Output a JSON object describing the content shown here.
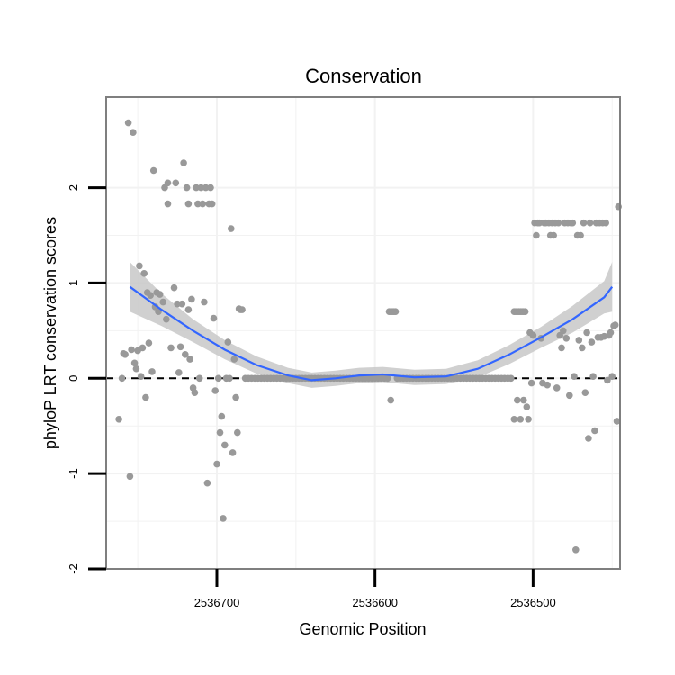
{
  "chart_data": {
    "type": "scatter",
    "title": "Conservation",
    "xlabel": "Genomic Position",
    "ylabel": "phyloP LRT conservation scores",
    "x_reversed": true,
    "xlim": [
      2536445,
      2536770
    ],
    "ylim": [
      -2,
      2.95
    ],
    "x_ticks": [
      2536700,
      2536600,
      2536500
    ],
    "x_tick_labels": [
      "2536700",
      "2536600",
      "2536500"
    ],
    "y_ticks": [
      -2,
      -1,
      0,
      1,
      2
    ],
    "y_tick_labels": [
      "-2",
      "-1",
      "0",
      "1",
      "2"
    ],
    "reference_line": {
      "y": 0,
      "style": "dashed"
    },
    "colors": {
      "points": "#999999",
      "smooth": "#3366FF",
      "ribbon": "#C8C8C8",
      "panel_border": "#7F7F7F",
      "grid": "#F2F2F2",
      "refline": "#000000"
    },
    "points": [
      [
        2536762,
        -0.43
      ],
      [
        2536760,
        0.0
      ],
      [
        2536759,
        0.26
      ],
      [
        2536758,
        0.25
      ],
      [
        2536756,
        2.68
      ],
      [
        2536755,
        -1.03
      ],
      [
        2536754,
        0.3
      ],
      [
        2536753,
        2.58
      ],
      [
        2536752,
        0.16
      ],
      [
        2536751,
        0.1
      ],
      [
        2536750,
        0.29
      ],
      [
        2536749,
        1.18
      ],
      [
        2536748,
        0.02
      ],
      [
        2536747,
        0.32
      ],
      [
        2536746,
        1.1
      ],
      [
        2536745,
        -0.2
      ],
      [
        2536744,
        0.9
      ],
      [
        2536743,
        0.37
      ],
      [
        2536742,
        0.87
      ],
      [
        2536741,
        0.07
      ],
      [
        2536740,
        2.18
      ],
      [
        2536739,
        0.75
      ],
      [
        2536738,
        0.9
      ],
      [
        2536737,
        0.7
      ],
      [
        2536736,
        0.88
      ],
      [
        2536734,
        0.8
      ],
      [
        2536733,
        2.0
      ],
      [
        2536732,
        0.62
      ],
      [
        2536731,
        1.83
      ],
      [
        2536731,
        2.05
      ],
      [
        2536729,
        0.32
      ],
      [
        2536727,
        0.95
      ],
      [
        2536726,
        2.05
      ],
      [
        2536725,
        0.78
      ],
      [
        2536724,
        0.06
      ],
      [
        2536723,
        0.33
      ],
      [
        2536722,
        0.78
      ],
      [
        2536721,
        2.26
      ],
      [
        2536720,
        0.25
      ],
      [
        2536719,
        2.0
      ],
      [
        2536718,
        0.72
      ],
      [
        2536718,
        1.83
      ],
      [
        2536717,
        0.2
      ],
      [
        2536716,
        0.83
      ],
      [
        2536715,
        -0.1
      ],
      [
        2536714,
        -0.15
      ],
      [
        2536713,
        2.0
      ],
      [
        2536712,
        1.83
      ],
      [
        2536711,
        0.0
      ],
      [
        2536710,
        2.0
      ],
      [
        2536709,
        1.83
      ],
      [
        2536708,
        0.8
      ],
      [
        2536707,
        2.0
      ],
      [
        2536706,
        -1.1
      ],
      [
        2536705,
        1.83
      ],
      [
        2536704,
        2.0
      ],
      [
        2536703,
        1.83
      ],
      [
        2536702,
        0.63
      ],
      [
        2536701,
        -0.13
      ],
      [
        2536700,
        -0.9
      ],
      [
        2536699,
        0.0
      ],
      [
        2536698,
        -0.57
      ],
      [
        2536697,
        -0.4
      ],
      [
        2536696,
        -1.47
      ],
      [
        2536695,
        -0.7
      ],
      [
        2536694,
        0.0
      ],
      [
        2536693,
        0.38
      ],
      [
        2536692,
        0.0
      ],
      [
        2536691,
        1.57
      ],
      [
        2536690,
        -0.78
      ],
      [
        2536689,
        0.2
      ],
      [
        2536688,
        -0.2
      ],
      [
        2536687,
        -0.57
      ],
      [
        2536686,
        0.73
      ],
      [
        2536685,
        0.72
      ],
      [
        2536684,
        0.72
      ],
      [
        2536682,
        0.0
      ],
      [
        2536680,
        0.0
      ],
      [
        2536678,
        0.0
      ],
      [
        2536676,
        0.0
      ],
      [
        2536674,
        0.0
      ],
      [
        2536672,
        0.0
      ],
      [
        2536670,
        0.0
      ],
      [
        2536668,
        0.0
      ],
      [
        2536666,
        0.0
      ],
      [
        2536664,
        0.0
      ],
      [
        2536662,
        0.0
      ],
      [
        2536660,
        0.0
      ],
      [
        2536658,
        0.0
      ],
      [
        2536656,
        0.0
      ],
      [
        2536654,
        0.0
      ],
      [
        2536652,
        0.0
      ],
      [
        2536650,
        0.0
      ],
      [
        2536648,
        0.0
      ],
      [
        2536646,
        0.0
      ],
      [
        2536644,
        0.0
      ],
      [
        2536642,
        0.0
      ],
      [
        2536640,
        0.0
      ],
      [
        2536638,
        0.0
      ],
      [
        2536636,
        0.0
      ],
      [
        2536634,
        0.0
      ],
      [
        2536632,
        0.0
      ],
      [
        2536630,
        0.0
      ],
      [
        2536628,
        0.0
      ],
      [
        2536626,
        0.0
      ],
      [
        2536624,
        0.0
      ],
      [
        2536622,
        0.0
      ],
      [
        2536620,
        0.0
      ],
      [
        2536618,
        0.0
      ],
      [
        2536616,
        0.0
      ],
      [
        2536614,
        0.0
      ],
      [
        2536612,
        0.0
      ],
      [
        2536610,
        0.0
      ],
      [
        2536608,
        0.0
      ],
      [
        2536606,
        0.0
      ],
      [
        2536604,
        0.0
      ],
      [
        2536602,
        0.0
      ],
      [
        2536600,
        0.0
      ],
      [
        2536598,
        0.0
      ],
      [
        2536596,
        0.0
      ],
      [
        2536594,
        0.0
      ],
      [
        2536592,
        0.0
      ],
      [
        2536591,
        0.7
      ],
      [
        2536590,
        0.7
      ],
      [
        2536589,
        0.7
      ],
      [
        2536588,
        0.7
      ],
      [
        2536587,
        0.7
      ],
      [
        2536590,
        -0.23
      ],
      [
        2536586,
        0.0
      ],
      [
        2536584,
        0.0
      ],
      [
        2536582,
        0.0
      ],
      [
        2536580,
        0.0
      ],
      [
        2536578,
        0.0
      ],
      [
        2536576,
        0.0
      ],
      [
        2536574,
        0.0
      ],
      [
        2536572,
        0.0
      ],
      [
        2536570,
        0.0
      ],
      [
        2536568,
        0.0
      ],
      [
        2536566,
        0.0
      ],
      [
        2536564,
        0.0
      ],
      [
        2536562,
        0.0
      ],
      [
        2536560,
        0.0
      ],
      [
        2536558,
        0.0
      ],
      [
        2536556,
        0.0
      ],
      [
        2536554,
        0.0
      ],
      [
        2536552,
        0.0
      ],
      [
        2536550,
        0.0
      ],
      [
        2536548,
        0.0
      ],
      [
        2536546,
        0.0
      ],
      [
        2536544,
        0.0
      ],
      [
        2536542,
        0.0
      ],
      [
        2536540,
        0.0
      ],
      [
        2536538,
        0.0
      ],
      [
        2536536,
        0.0
      ],
      [
        2536534,
        0.0
      ],
      [
        2536532,
        0.0
      ],
      [
        2536530,
        0.0
      ],
      [
        2536528,
        0.0
      ],
      [
        2536526,
        0.0
      ],
      [
        2536524,
        0.0
      ],
      [
        2536522,
        0.0
      ],
      [
        2536520,
        0.0
      ],
      [
        2536518,
        0.0
      ],
      [
        2536516,
        0.0
      ],
      [
        2536514,
        0.0
      ],
      [
        2536512,
        0.7
      ],
      [
        2536511,
        0.7
      ],
      [
        2536510,
        0.7
      ],
      [
        2536509,
        0.7
      ],
      [
        2536508,
        0.7
      ],
      [
        2536507,
        0.7
      ],
      [
        2536506,
        0.7
      ],
      [
        2536505,
        0.7
      ],
      [
        2536512,
        -0.43
      ],
      [
        2536510,
        -0.23
      ],
      [
        2536508,
        -0.43
      ],
      [
        2536506,
        -0.23
      ],
      [
        2536504,
        -0.3
      ],
      [
        2536503,
        -0.43
      ],
      [
        2536502,
        0.48
      ],
      [
        2536501,
        -0.05
      ],
      [
        2536500,
        0.45
      ],
      [
        2536499,
        1.63
      ],
      [
        2536498,
        1.5
      ],
      [
        2536497,
        1.63
      ],
      [
        2536496,
        1.63
      ],
      [
        2536495,
        0.42
      ],
      [
        2536494,
        -0.05
      ],
      [
        2536493,
        1.63
      ],
      [
        2536492,
        1.63
      ],
      [
        2536491,
        -0.07
      ],
      [
        2536490,
        1.63
      ],
      [
        2536489,
        1.5
      ],
      [
        2536488,
        1.63
      ],
      [
        2536487,
        1.5
      ],
      [
        2536486,
        1.63
      ],
      [
        2536485,
        -0.1
      ],
      [
        2536484,
        1.63
      ],
      [
        2536483,
        0.45
      ],
      [
        2536482,
        0.32
      ],
      [
        2536481,
        0.5
      ],
      [
        2536480,
        1.63
      ],
      [
        2536479,
        0.42
      ],
      [
        2536478,
        1.63
      ],
      [
        2536477,
        -0.18
      ],
      [
        2536476,
        1.63
      ],
      [
        2536475,
        1.63
      ],
      [
        2536474,
        0.02
      ],
      [
        2536473,
        -1.8
      ],
      [
        2536472,
        1.5
      ],
      [
        2536471,
        0.4
      ],
      [
        2536470,
        1.5
      ],
      [
        2536469,
        0.32
      ],
      [
        2536468,
        1.63
      ],
      [
        2536467,
        -0.15
      ],
      [
        2536466,
        0.48
      ],
      [
        2536465,
        -0.63
      ],
      [
        2536464,
        1.63
      ],
      [
        2536463,
        0.38
      ],
      [
        2536462,
        0.02
      ],
      [
        2536461,
        -0.55
      ],
      [
        2536460,
        1.63
      ],
      [
        2536459,
        0.43
      ],
      [
        2536458,
        1.63
      ],
      [
        2536457,
        0.43
      ],
      [
        2536456,
        1.63
      ],
      [
        2536455,
        0.44
      ],
      [
        2536454,
        1.63
      ],
      [
        2536453,
        -0.02
      ],
      [
        2536452,
        0.45
      ],
      [
        2536451,
        0.48
      ],
      [
        2536450,
        0.02
      ],
      [
        2536449,
        0.55
      ],
      [
        2536448,
        0.56
      ],
      [
        2536447,
        -0.45
      ],
      [
        2536446,
        1.8
      ]
    ],
    "smooth": {
      "method": "loess",
      "x": [
        2536755,
        2536735,
        2536715,
        2536695,
        2536675,
        2536655,
        2536640,
        2536625,
        2536610,
        2536595,
        2536575,
        2536555,
        2536535,
        2536515,
        2536495,
        2536475,
        2536455,
        2536450
      ],
      "y": [
        0.96,
        0.72,
        0.5,
        0.3,
        0.14,
        0.03,
        -0.02,
        0.0,
        0.03,
        0.04,
        0.01,
        0.02,
        0.1,
        0.25,
        0.43,
        0.62,
        0.85,
        0.96
      ],
      "ymin": [
        0.7,
        0.55,
        0.38,
        0.2,
        0.05,
        -0.05,
        -0.1,
        -0.08,
        -0.05,
        -0.04,
        -0.07,
        -0.06,
        0.01,
        0.15,
        0.32,
        0.48,
        0.68,
        0.7
      ],
      "ymax": [
        1.22,
        0.89,
        0.62,
        0.4,
        0.23,
        0.11,
        0.06,
        0.08,
        0.11,
        0.12,
        0.09,
        0.1,
        0.19,
        0.35,
        0.54,
        0.76,
        1.02,
        1.22
      ]
    }
  }
}
